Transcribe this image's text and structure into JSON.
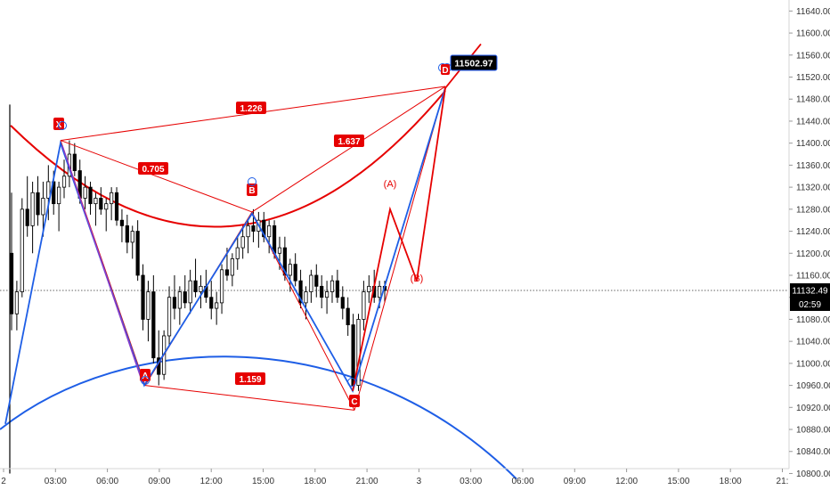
{
  "chart_data": {
    "type": "candlestick-with-harmonic-pattern",
    "price_axis": {
      "ticks": [
        "11640.00",
        "11600.00",
        "11560.00",
        "11520.00",
        "11480.00",
        "11440.00",
        "11400.00",
        "11360.00",
        "11320.00",
        "11280.00",
        "11240.00",
        "11200.00",
        "11160.00",
        "11120.00",
        "11080.00",
        "11040.00",
        "11000.00",
        "10960.00",
        "10920.00",
        "10880.00",
        "10840.00",
        "10800.00"
      ],
      "ylim": [
        10770,
        11660
      ]
    },
    "time_axis": {
      "ticks": [
        "2",
        "03:00",
        "06:00",
        "09:00",
        "12:00",
        "15:00",
        "18:00",
        "21:00",
        "3",
        "03:00",
        "06:00",
        "09:00",
        "12:00",
        "15:00",
        "18:00",
        "21:"
      ]
    },
    "last_price": "11132.49",
    "countdown": "02:59",
    "target_price": "11502.97",
    "colors": {
      "bull": "#26a69a",
      "bear": "#000000",
      "pattern_red": "#e60000",
      "pattern_blue": "#1e5ee6",
      "label_bg": "#e60000",
      "target_bg": "#000000",
      "last_price_bg": "#000000"
    },
    "points": [
      {
        "label": "X",
        "price": 11405
      },
      {
        "label": "A",
        "price": 10960
      },
      {
        "label": "B",
        "price": 11275
      },
      {
        "label": "C",
        "price": 10915
      },
      {
        "label": "D",
        "price": 11502.97
      }
    ],
    "ratios": [
      "1.226",
      "0.705",
      "1.637",
      "1.159"
    ],
    "wave_labels": [
      "(A)",
      "(B)"
    ],
    "candles": [
      [
        11200,
        11310,
        11060,
        11090
      ],
      [
        11090,
        11150,
        11060,
        11130
      ],
      [
        11130,
        11300,
        11120,
        11280
      ],
      [
        11280,
        11340,
        11230,
        11250
      ],
      [
        11250,
        11330,
        11200,
        11310
      ],
      [
        11310,
        11340,
        11250,
        11270
      ],
      [
        11270,
        11330,
        11230,
        11300
      ],
      [
        11300,
        11360,
        11260,
        11330
      ],
      [
        11330,
        11350,
        11270,
        11290
      ],
      [
        11290,
        11330,
        11240,
        11320
      ],
      [
        11320,
        11370,
        11300,
        11340
      ],
      [
        11340,
        11405,
        11320,
        11380
      ],
      [
        11380,
        11400,
        11340,
        11350
      ],
      [
        11350,
        11370,
        11290,
        11300
      ],
      [
        11300,
        11340,
        11280,
        11320
      ],
      [
        11320,
        11330,
        11270,
        11290
      ],
      [
        11290,
        11310,
        11250,
        11300
      ],
      [
        11300,
        11320,
        11270,
        11280
      ],
      [
        11280,
        11300,
        11240,
        11290
      ],
      [
        11290,
        11320,
        11260,
        11310
      ],
      [
        11310,
        11320,
        11250,
        11260
      ],
      [
        11260,
        11280,
        11220,
        11250
      ],
      [
        11250,
        11270,
        11200,
        11220
      ],
      [
        11220,
        11250,
        11190,
        11240
      ],
      [
        11240,
        11260,
        11150,
        11160
      ],
      [
        11160,
        11180,
        11060,
        11080
      ],
      [
        11080,
        11150,
        11040,
        11130
      ],
      [
        11130,
        11160,
        11000,
        11010
      ],
      [
        11010,
        11060,
        10960,
        10980
      ],
      [
        10980,
        11060,
        10970,
        11050
      ],
      [
        11050,
        11140,
        11030,
        11120
      ],
      [
        11120,
        11160,
        11080,
        11100
      ],
      [
        11100,
        11140,
        11070,
        11130
      ],
      [
        11130,
        11160,
        11100,
        11110
      ],
      [
        11110,
        11170,
        11090,
        11150
      ],
      [
        11150,
        11190,
        11120,
        11130
      ],
      [
        11130,
        11160,
        11100,
        11140
      ],
      [
        11140,
        11170,
        11110,
        11120
      ],
      [
        11120,
        11150,
        11080,
        11100
      ],
      [
        11100,
        11130,
        11070,
        11110
      ],
      [
        11110,
        11180,
        11090,
        11170
      ],
      [
        11170,
        11210,
        11150,
        11160
      ],
      [
        11160,
        11200,
        11140,
        11190
      ],
      [
        11190,
        11230,
        11170,
        11210
      ],
      [
        11210,
        11250,
        11190,
        11230
      ],
      [
        11230,
        11260,
        11200,
        11250
      ],
      [
        11250,
        11280,
        11220,
        11240
      ],
      [
        11240,
        11275,
        11210,
        11260
      ],
      [
        11260,
        11275,
        11220,
        11230
      ],
      [
        11230,
        11260,
        11200,
        11250
      ],
      [
        11250,
        11260,
        11190,
        11200
      ],
      [
        11200,
        11230,
        11170,
        11210
      ],
      [
        11210,
        11230,
        11150,
        11160
      ],
      [
        11160,
        11190,
        11130,
        11180
      ],
      [
        11180,
        11200,
        11140,
        11150
      ],
      [
        11150,
        11170,
        11100,
        11110
      ],
      [
        11110,
        11140,
        11080,
        11130
      ],
      [
        11130,
        11170,
        11110,
        11160
      ],
      [
        11160,
        11180,
        11120,
        11140
      ],
      [
        11140,
        11160,
        11100,
        11120
      ],
      [
        11120,
        11150,
        11090,
        11130
      ],
      [
        11130,
        11160,
        11110,
        11150
      ],
      [
        11150,
        11170,
        11110,
        11120
      ],
      [
        11120,
        11140,
        11080,
        11100
      ],
      [
        11100,
        11120,
        11050,
        11070
      ],
      [
        11070,
        11090,
        10950,
        10960
      ],
      [
        10960,
        11090,
        10950,
        11080
      ],
      [
        11080,
        11150,
        11060,
        11130
      ],
      [
        11130,
        11160,
        11110,
        11140
      ],
      [
        11140,
        11170,
        11110,
        11120
      ],
      [
        11120,
        11150,
        11100,
        11140
      ],
      [
        11140,
        11150,
        11110,
        11132.49
      ]
    ]
  }
}
